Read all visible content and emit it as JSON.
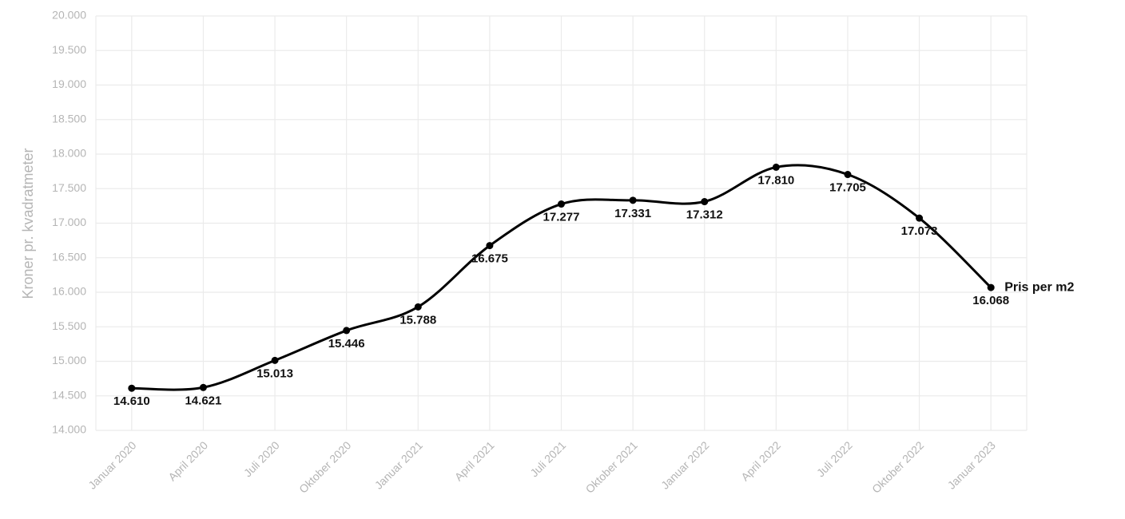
{
  "chart_data": {
    "type": "line",
    "y_label": "Kroner pr. kvadratmeter",
    "categories": [
      "Januar 2020",
      "April 2020",
      "Juli 2020",
      "Oktober 2020",
      "Januar 2021",
      "April 2021",
      "Juli 2021",
      "Oktober 2021",
      "Januar 2022",
      "April 2022",
      "Juli 2022",
      "Oktober 2022",
      "Januar 2023"
    ],
    "series": [
      {
        "name": "Pris per m2",
        "color": "#000000",
        "values": [
          14610,
          14621,
          15013,
          15446,
          15788,
          16675,
          17277,
          17331,
          17312,
          17810,
          17705,
          17073,
          16068
        ],
        "value_labels": [
          "14.610",
          "14.621",
          "15.013",
          "15.446",
          "15.788",
          "16.675",
          "17.277",
          "17.331",
          "17.312",
          "17.810",
          "17.705",
          "17.073",
          "16.068"
        ]
      }
    ],
    "ylim": [
      14000,
      20000
    ],
    "yticks": [
      {
        "value": 14000,
        "label": "14.000"
      },
      {
        "value": 14500,
        "label": "14.500"
      },
      {
        "value": 15000,
        "label": "15.000"
      },
      {
        "value": 15500,
        "label": "15.500"
      },
      {
        "value": 16000,
        "label": "16.000"
      },
      {
        "value": 16500,
        "label": "16.500"
      },
      {
        "value": 17000,
        "label": "17.000"
      },
      {
        "value": 17500,
        "label": "17.500"
      },
      {
        "value": 18000,
        "label": "18.000"
      },
      {
        "value": 18500,
        "label": "18.500"
      },
      {
        "value": 19000,
        "label": "19.000"
      },
      {
        "value": 19500,
        "label": "19.500"
      },
      {
        "value": 20000,
        "label": "20.000"
      }
    ],
    "grid": true
  }
}
